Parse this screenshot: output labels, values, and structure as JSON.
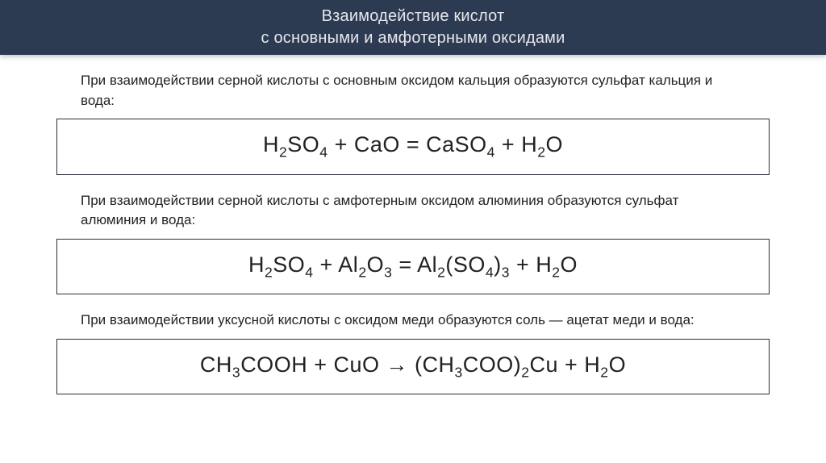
{
  "header": {
    "title_line1": "Взаимодействие кислот",
    "title_line2": "с основными и амфотерными оксидами",
    "bg_color": "#2c3a52",
    "text_color": "#e6e8ee"
  },
  "sections": [
    {
      "caption": "При взаимодействии серной кислоты с основным оксидом кальция образуются сульфат кальция и вода:",
      "formula_html": "H<sub>2</sub>SO<sub>4</sub> + CaO = CaSO<sub>4</sub> + H<sub>2</sub>O"
    },
    {
      "caption": "При взаимодействии серной кислоты с амфотерным оксидом алюминия образуются сульфат алюминия и вода:",
      "formula_html": "H<sub>2</sub>SO<sub>4</sub> + Al<sub>2</sub>O<sub>3</sub> = Al<sub>2</sub>(SO<sub>4</sub>)<sub>3</sub> + H<sub>2</sub>O"
    },
    {
      "caption": "При взаимодействии уксусной кислоты с оксидом меди образуются соль — ацетат меди и вода:",
      "formula_html": "CH<sub>3</sub>COOH + CuO → (CH<sub>3</sub>COO)<sub>2</sub>Cu + H<sub>2</sub>O"
    }
  ],
  "styling": {
    "page_bg": "#ffffff",
    "formula_border_color": "#2a2f3a",
    "caption_color": "#222222",
    "formula_color": "#222222",
    "caption_fontsize": 17,
    "formula_fontsize": 27,
    "header_title_fontsize": 20
  }
}
